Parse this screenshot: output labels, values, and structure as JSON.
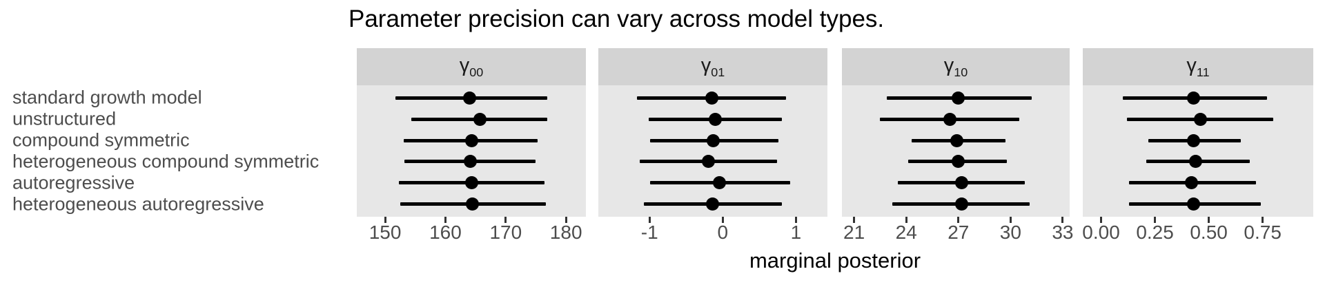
{
  "colors": {
    "strip_background": "#d3d3d3",
    "panel_background": "#e7e7e7",
    "data_ink": "#000000",
    "axis_text": "#4d4d4d",
    "tick_mark": "#333333",
    "title_text": "#000000"
  },
  "chart_data": {
    "type": "pointrange",
    "title": "Parameter precision can vary across model types.",
    "xlabel": "marginal posterior",
    "ylabel": "",
    "grid": false,
    "legend": false,
    "categories": [
      "standard growth model",
      "unstructured",
      "compound symmetric",
      "heterogeneous compound symmetric",
      "autoregressive",
      "heterogeneous autoregressive"
    ],
    "facets": [
      {
        "label_base": "γ",
        "label_sub": "00",
        "xlim": [
          145.3,
          183.3
        ],
        "ticks": [
          150,
          160,
          170,
          180
        ],
        "tick_labels": [
          "150",
          "160",
          "170",
          "180"
        ],
        "intervals": [
          {
            "lo": 151.7,
            "mid": 164.0,
            "hi": 176.9
          },
          {
            "lo": 154.3,
            "mid": 165.7,
            "hi": 176.9
          },
          {
            "lo": 153.1,
            "mid": 164.4,
            "hi": 175.3
          },
          {
            "lo": 153.2,
            "mid": 164.1,
            "hi": 175.0
          },
          {
            "lo": 152.3,
            "mid": 164.3,
            "hi": 176.4
          },
          {
            "lo": 152.5,
            "mid": 164.5,
            "hi": 176.7
          }
        ]
      },
      {
        "label_base": "γ",
        "label_sub": "01",
        "xlim": [
          -1.7,
          1.43
        ],
        "ticks": [
          -1,
          0,
          1
        ],
        "tick_labels": [
          "-1",
          "0",
          "1"
        ],
        "intervals": [
          {
            "lo": -1.17,
            "mid": -0.15,
            "hi": 0.86
          },
          {
            "lo": -1.01,
            "mid": -0.1,
            "hi": 0.81
          },
          {
            "lo": -0.99,
            "mid": -0.13,
            "hi": 0.76
          },
          {
            "lo": -1.13,
            "mid": -0.2,
            "hi": 0.74
          },
          {
            "lo": -0.99,
            "mid": -0.05,
            "hi": 0.92
          },
          {
            "lo": -1.08,
            "mid": -0.14,
            "hi": 0.81
          }
        ]
      },
      {
        "label_base": "γ",
        "label_sub": "10",
        "xlim": [
          20.3,
          33.4
        ],
        "ticks": [
          21,
          24,
          27,
          30,
          33
        ],
        "tick_labels": [
          "21",
          "24",
          "27",
          "30",
          "33"
        ],
        "intervals": [
          {
            "lo": 22.9,
            "mid": 27.0,
            "hi": 31.2
          },
          {
            "lo": 22.5,
            "mid": 26.5,
            "hi": 30.5
          },
          {
            "lo": 24.3,
            "mid": 26.9,
            "hi": 29.7
          },
          {
            "lo": 24.1,
            "mid": 27.0,
            "hi": 29.8
          },
          {
            "lo": 23.5,
            "mid": 27.2,
            "hi": 30.8
          },
          {
            "lo": 23.2,
            "mid": 27.2,
            "hi": 31.1
          }
        ]
      },
      {
        "label_base": "γ",
        "label_sub": "11",
        "xlim": [
          -0.085,
          0.985
        ],
        "ticks": [
          0.0,
          0.25,
          0.5,
          0.75
        ],
        "tick_labels": [
          "0.00",
          "0.25",
          "0.50",
          "0.75"
        ],
        "intervals": [
          {
            "lo": 0.1,
            "mid": 0.43,
            "hi": 0.77
          },
          {
            "lo": 0.12,
            "mid": 0.46,
            "hi": 0.8
          },
          {
            "lo": 0.22,
            "mid": 0.43,
            "hi": 0.65
          },
          {
            "lo": 0.21,
            "mid": 0.44,
            "hi": 0.69
          },
          {
            "lo": 0.13,
            "mid": 0.42,
            "hi": 0.72
          },
          {
            "lo": 0.13,
            "mid": 0.43,
            "hi": 0.74
          }
        ]
      }
    ]
  }
}
